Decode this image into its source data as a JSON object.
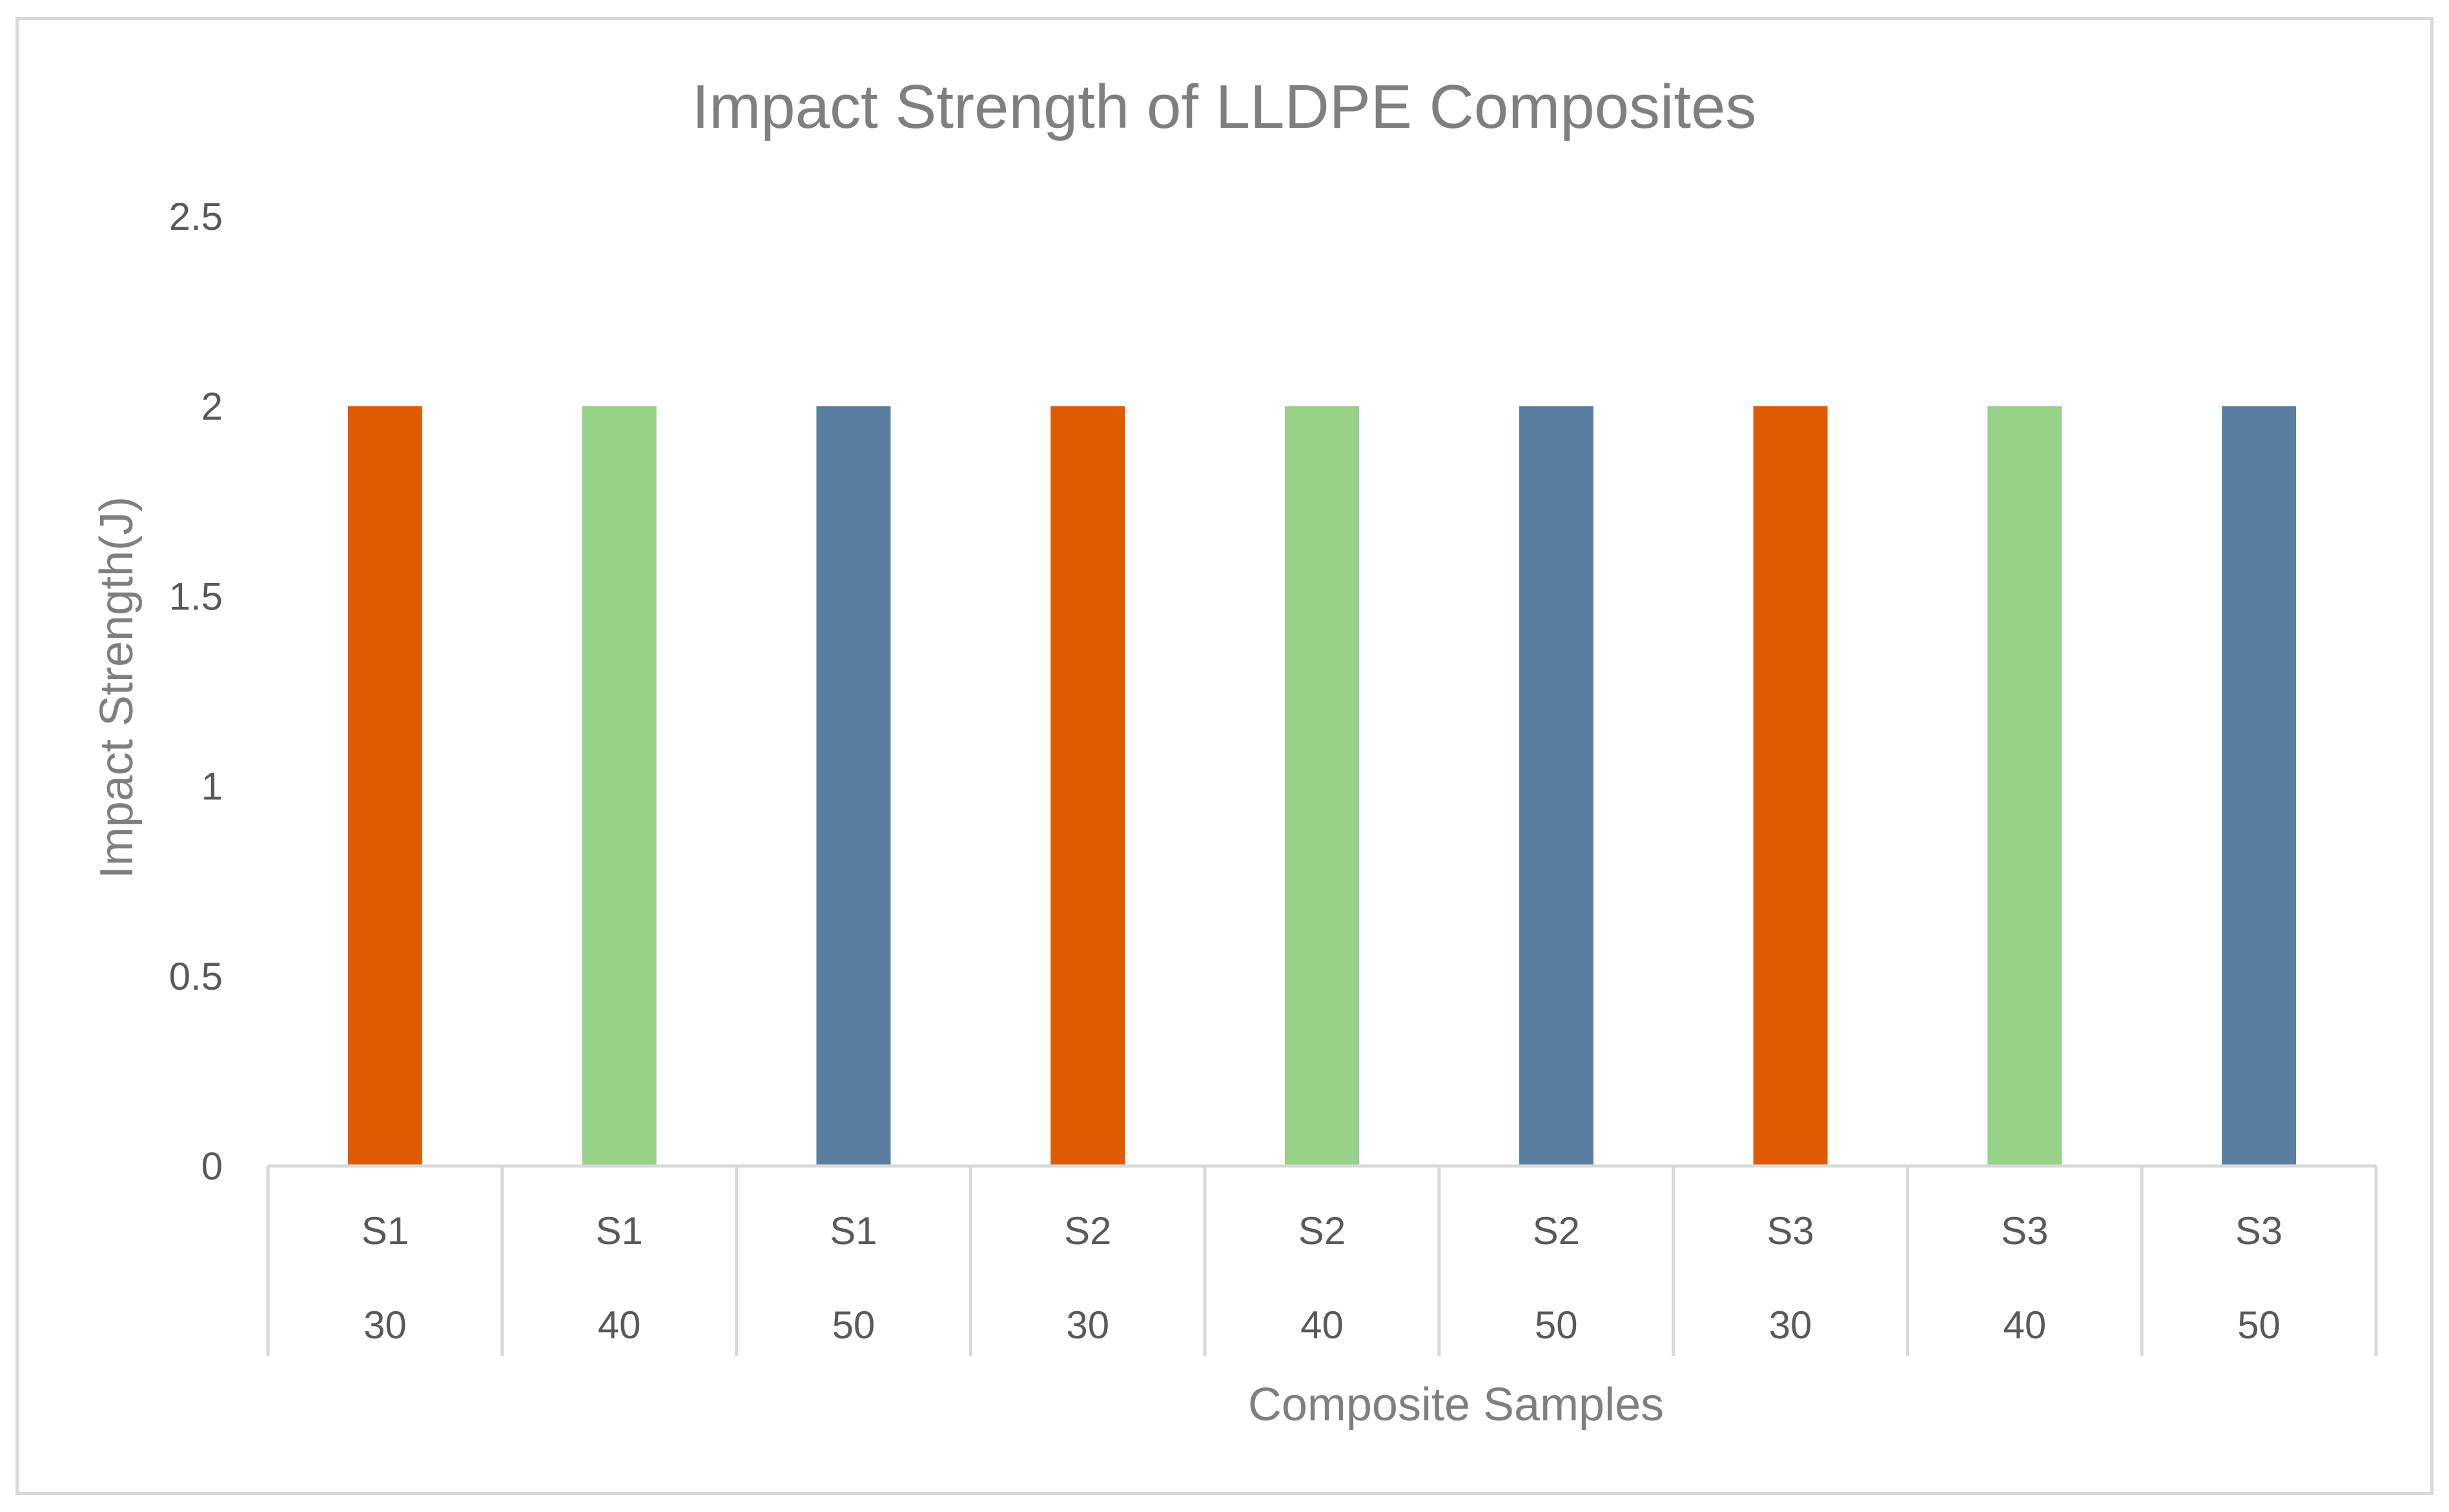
{
  "chart_data": {
    "type": "bar",
    "title": "Impact Strength of LLDPE Composites",
    "xlabel": "Composite Samples",
    "ylabel": "Impact Strength(J)",
    "ylim": [
      0,
      2.5
    ],
    "yticks": [
      "0",
      "0.5",
      "1",
      "1.5",
      "2",
      "2.5"
    ],
    "ytick_values": [
      0,
      0.5,
      1,
      1.5,
      2,
      2.5
    ],
    "grid": false,
    "legend": "none",
    "categories": [
      {
        "sample": "S1",
        "loading": "30"
      },
      {
        "sample": "S1",
        "loading": "40"
      },
      {
        "sample": "S1",
        "loading": "50"
      },
      {
        "sample": "S2",
        "loading": "30"
      },
      {
        "sample": "S2",
        "loading": "40"
      },
      {
        "sample": "S2",
        "loading": "50"
      },
      {
        "sample": "S3",
        "loading": "30"
      },
      {
        "sample": "S3",
        "loading": "40"
      },
      {
        "sample": "S3",
        "loading": "50"
      }
    ],
    "values": [
      2,
      2,
      2,
      2,
      2,
      2,
      2,
      2,
      2
    ],
    "bar_colors": [
      "#e05a00",
      "#96d287",
      "#5a7ea0",
      "#e05a00",
      "#96d287",
      "#5a7ea0",
      "#e05a00",
      "#96d287",
      "#5a7ea0"
    ],
    "axis_color": "#d9d9d9"
  }
}
